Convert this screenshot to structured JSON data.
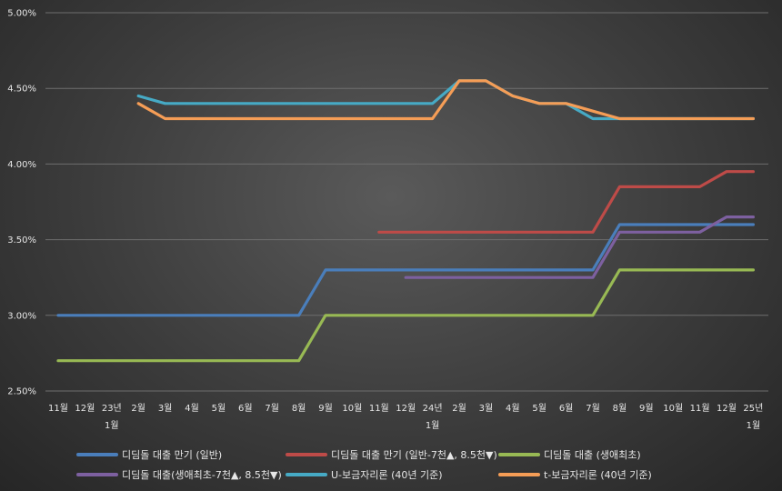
{
  "chart_data": {
    "type": "line",
    "ylim": [
      0.025,
      0.05
    ],
    "y_ticks": [
      "2.50%",
      "3.00%",
      "3.50%",
      "4.00%",
      "4.50%",
      "5.00%"
    ],
    "y_tick_values": [
      0.025,
      0.03,
      0.035,
      0.04,
      0.045,
      0.05
    ],
    "categories": [
      "11월",
      "12월",
      "23년 1월",
      "2월",
      "3월",
      "4월",
      "5월",
      "6월",
      "7월",
      "8월",
      "9월",
      "10월",
      "11월",
      "12월",
      "24년 1월",
      "2월",
      "3월",
      "4월",
      "5월",
      "6월",
      "7월",
      "8월",
      "9월",
      "10월",
      "11월",
      "12월",
      "25년 1월"
    ],
    "category_lines": [
      [
        "11월"
      ],
      [
        "12월"
      ],
      [
        "23년",
        "1월"
      ],
      [
        "2월"
      ],
      [
        "3월"
      ],
      [
        "4월"
      ],
      [
        "5월"
      ],
      [
        "6월"
      ],
      [
        "7월"
      ],
      [
        "8월"
      ],
      [
        "9월"
      ],
      [
        "10월"
      ],
      [
        "11월"
      ],
      [
        "12월"
      ],
      [
        "24년",
        "1월"
      ],
      [
        "2월"
      ],
      [
        "3월"
      ],
      [
        "4월"
      ],
      [
        "5월"
      ],
      [
        "6월"
      ],
      [
        "7월"
      ],
      [
        "8월"
      ],
      [
        "9월"
      ],
      [
        "10월"
      ],
      [
        "11월"
      ],
      [
        "12월"
      ],
      [
        "25년",
        "1월"
      ]
    ],
    "grid": true,
    "legend_position": "bottom",
    "series": [
      {
        "name": "디딤돌 대출 만기 (일반)",
        "color": "#4a7ebb",
        "values": [
          0.03,
          0.03,
          0.03,
          0.03,
          0.03,
          0.03,
          0.03,
          0.03,
          0.03,
          0.03,
          0.033,
          0.033,
          0.033,
          0.033,
          0.033,
          0.033,
          0.033,
          0.033,
          0.033,
          0.033,
          0.033,
          0.036,
          0.036,
          0.036,
          0.036,
          0.036,
          0.036
        ]
      },
      {
        "name": "디딤돌 대출 만기 (일반-7천▲, 8.5천▼)",
        "color": "#be4b48",
        "values": [
          null,
          null,
          null,
          null,
          null,
          null,
          null,
          null,
          null,
          null,
          null,
          null,
          0.0355,
          0.0355,
          0.0355,
          0.0355,
          0.0355,
          0.0355,
          0.0355,
          0.0355,
          0.0355,
          0.0385,
          0.0385,
          0.0385,
          0.0385,
          0.0395,
          0.0395
        ]
      },
      {
        "name": "디딤돌 대출 (생애최초)",
        "color": "#98b954",
        "values": [
          0.027,
          0.027,
          0.027,
          0.027,
          0.027,
          0.027,
          0.027,
          0.027,
          0.027,
          0.027,
          0.03,
          0.03,
          0.03,
          0.03,
          0.03,
          0.03,
          0.03,
          0.03,
          0.03,
          0.03,
          0.03,
          0.033,
          0.033,
          0.033,
          0.033,
          0.033,
          0.033
        ]
      },
      {
        "name": "디딤돌 대출(생애최초-7천▲, 8.5천▼)",
        "color": "#7d60a0",
        "values": [
          null,
          null,
          null,
          null,
          null,
          null,
          null,
          null,
          null,
          null,
          null,
          null,
          null,
          0.0325,
          0.0325,
          0.0325,
          0.0325,
          0.0325,
          0.0325,
          0.0325,
          0.0325,
          0.0355,
          0.0355,
          0.0355,
          0.0355,
          0.0365,
          0.0365
        ]
      },
      {
        "name": "U-보금자리론 (40년 기준)",
        "color": "#46aac5",
        "values": [
          null,
          null,
          null,
          0.0445,
          0.044,
          0.044,
          0.044,
          0.044,
          0.044,
          0.044,
          0.044,
          0.044,
          0.044,
          0.044,
          0.044,
          0.0455,
          0.0455,
          0.0445,
          0.044,
          0.044,
          0.043,
          0.043,
          0.043,
          0.043,
          0.043,
          0.043,
          0.043
        ]
      },
      {
        "name": "t-보금자리론 (40년 기준)",
        "color": "#f59d56",
        "values": [
          null,
          null,
          null,
          0.044,
          0.043,
          0.043,
          0.043,
          0.043,
          0.043,
          0.043,
          0.043,
          0.043,
          0.043,
          0.043,
          0.043,
          0.0455,
          0.0455,
          0.0445,
          0.044,
          0.044,
          0.0435,
          0.043,
          0.043,
          0.043,
          0.043,
          0.043,
          0.043
        ]
      }
    ]
  }
}
